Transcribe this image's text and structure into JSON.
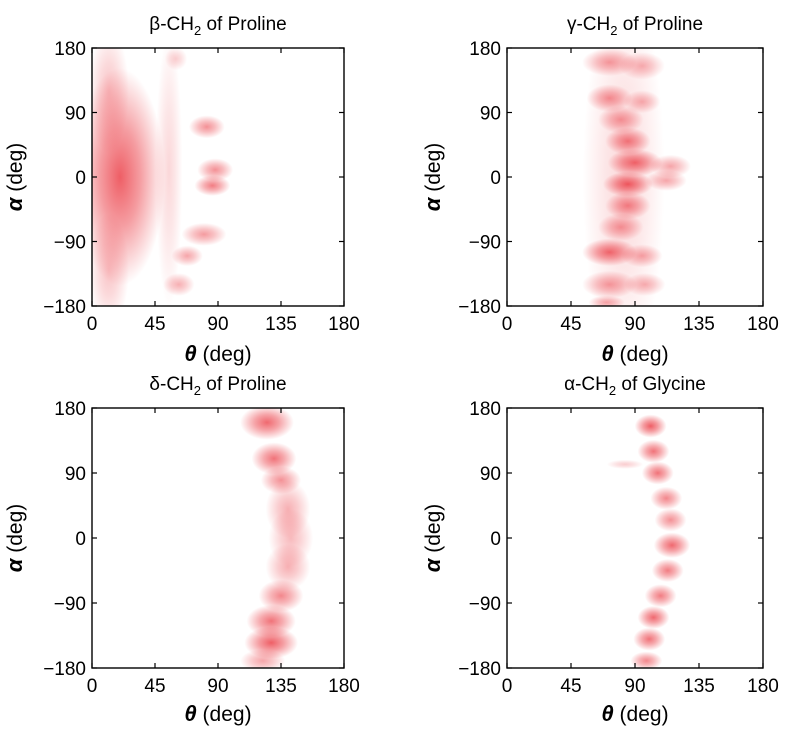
{
  "figure": {
    "density_color": "#e8202a",
    "background": "#ffffff"
  },
  "chart_data": [
    {
      "type": "heatmap",
      "title": {
        "greek": "β",
        "main": "-CH",
        "sub": "2",
        "rest": " of Proline"
      },
      "xlabel": {
        "symbol": "θ",
        "unit": " (deg)"
      },
      "ylabel": {
        "symbol": "α",
        "unit": " (deg)"
      },
      "xlim": [
        0,
        180
      ],
      "ylim": [
        -180,
        180
      ],
      "xticks": [
        "0",
        "45",
        "90",
        "135",
        "180"
      ],
      "yticks": [
        "−180",
        "−90",
        "0",
        "90",
        "180"
      ],
      "xtick_values": [
        0,
        45,
        90,
        135,
        180
      ],
      "ytick_values": [
        -180,
        -90,
        0,
        90,
        180
      ],
      "density_regions": [
        {
          "theta": 20,
          "alpha": 0,
          "d_theta": 20,
          "d_alpha": 95,
          "intensity": 0.8
        },
        {
          "theta": 12,
          "alpha": 120,
          "d_theta": 9,
          "d_alpha": 55,
          "intensity": 0.3
        },
        {
          "theta": 12,
          "alpha": -130,
          "d_theta": 9,
          "d_alpha": 50,
          "intensity": 0.3
        },
        {
          "theta": 55,
          "alpha": 10,
          "d_theta": 6,
          "d_alpha": 120,
          "intensity": 0.2
        },
        {
          "theta": 82,
          "alpha": 70,
          "d_theta": 8,
          "d_alpha": 10,
          "intensity": 0.55
        },
        {
          "theta": 88,
          "alpha": 10,
          "d_theta": 8,
          "d_alpha": 10,
          "intensity": 0.55
        },
        {
          "theta": 86,
          "alpha": -12,
          "d_theta": 8,
          "d_alpha": 9,
          "intensity": 0.65
        },
        {
          "theta": 80,
          "alpha": -80,
          "d_theta": 10,
          "d_alpha": 10,
          "intensity": 0.5
        },
        {
          "theta": 68,
          "alpha": -110,
          "d_theta": 7,
          "d_alpha": 9,
          "intensity": 0.45
        },
        {
          "theta": 62,
          "alpha": -150,
          "d_theta": 7,
          "d_alpha": 10,
          "intensity": 0.4
        },
        {
          "theta": 60,
          "alpha": 165,
          "d_theta": 5,
          "d_alpha": 10,
          "intensity": 0.25
        }
      ]
    },
    {
      "type": "heatmap",
      "title": {
        "greek": "γ",
        "main": "-CH",
        "sub": "2",
        "rest": " of Proline"
      },
      "xlabel": {
        "symbol": "θ",
        "unit": " (deg)"
      },
      "ylabel": {
        "symbol": "α",
        "unit": " (deg)"
      },
      "xlim": [
        0,
        180
      ],
      "ylim": [
        -180,
        180
      ],
      "xticks": [
        "0",
        "45",
        "90",
        "135",
        "180"
      ],
      "yticks": [
        "−180",
        "−90",
        "0",
        "90",
        "180"
      ],
      "xtick_values": [
        0,
        45,
        90,
        135,
        180
      ],
      "ytick_values": [
        -180,
        -90,
        0,
        90,
        180
      ],
      "density_regions": [
        {
          "theta": 72,
          "alpha": 160,
          "d_theta": 12,
          "d_alpha": 12,
          "intensity": 0.5
        },
        {
          "theta": 95,
          "alpha": 155,
          "d_theta": 10,
          "d_alpha": 12,
          "intensity": 0.4
        },
        {
          "theta": 72,
          "alpha": 110,
          "d_theta": 10,
          "d_alpha": 12,
          "intensity": 0.55
        },
        {
          "theta": 95,
          "alpha": 105,
          "d_theta": 8,
          "d_alpha": 10,
          "intensity": 0.4
        },
        {
          "theta": 80,
          "alpha": 80,
          "d_theta": 10,
          "d_alpha": 12,
          "intensity": 0.5
        },
        {
          "theta": 85,
          "alpha": 50,
          "d_theta": 10,
          "d_alpha": 12,
          "intensity": 0.65
        },
        {
          "theta": 90,
          "alpha": 20,
          "d_theta": 12,
          "d_alpha": 12,
          "intensity": 0.75
        },
        {
          "theta": 115,
          "alpha": 15,
          "d_theta": 9,
          "d_alpha": 10,
          "intensity": 0.45
        },
        {
          "theta": 85,
          "alpha": -10,
          "d_theta": 11,
          "d_alpha": 11,
          "intensity": 0.8
        },
        {
          "theta": 112,
          "alpha": -5,
          "d_theta": 9,
          "d_alpha": 9,
          "intensity": 0.45
        },
        {
          "theta": 85,
          "alpha": -40,
          "d_theta": 10,
          "d_alpha": 12,
          "intensity": 0.6
        },
        {
          "theta": 80,
          "alpha": -70,
          "d_theta": 10,
          "d_alpha": 12,
          "intensity": 0.5
        },
        {
          "theta": 72,
          "alpha": -105,
          "d_theta": 12,
          "d_alpha": 12,
          "intensity": 0.75
        },
        {
          "theta": 95,
          "alpha": -110,
          "d_theta": 9,
          "d_alpha": 10,
          "intensity": 0.45
        },
        {
          "theta": 72,
          "alpha": -150,
          "d_theta": 12,
          "d_alpha": 12,
          "intensity": 0.5
        },
        {
          "theta": 97,
          "alpha": -150,
          "d_theta": 9,
          "d_alpha": 10,
          "intensity": 0.4
        },
        {
          "theta": 70,
          "alpha": -175,
          "d_theta": 8,
          "d_alpha": 6,
          "intensity": 0.45
        },
        {
          "theta": 82,
          "alpha": 0,
          "d_theta": 18,
          "d_alpha": 170,
          "intensity": 0.2
        }
      ]
    },
    {
      "type": "heatmap",
      "title": {
        "greek": "δ",
        "main": "-CH",
        "sub": "2",
        "rest": " of Proline"
      },
      "xlabel": {
        "symbol": "θ",
        "unit": " (deg)"
      },
      "ylabel": {
        "symbol": "α",
        "unit": " (deg)"
      },
      "xlim": [
        0,
        180
      ],
      "ylim": [
        -180,
        180
      ],
      "xticks": [
        "0",
        "45",
        "90",
        "135",
        "180"
      ],
      "yticks": [
        "−180",
        "−90",
        "0",
        "90",
        "180"
      ],
      "xtick_values": [
        0,
        45,
        90,
        135,
        180
      ],
      "ytick_values": [
        -180,
        -90,
        0,
        90,
        180
      ],
      "density_regions": [
        {
          "theta": 125,
          "alpha": 160,
          "d_theta": 12,
          "d_alpha": 15,
          "intensity": 0.75
        },
        {
          "theta": 130,
          "alpha": 110,
          "d_theta": 10,
          "d_alpha": 14,
          "intensity": 0.7
        },
        {
          "theta": 135,
          "alpha": 80,
          "d_theta": 9,
          "d_alpha": 12,
          "intensity": 0.55
        },
        {
          "theta": 140,
          "alpha": 40,
          "d_theta": 10,
          "d_alpha": 25,
          "intensity": 0.4
        },
        {
          "theta": 142,
          "alpha": 0,
          "d_theta": 10,
          "d_alpha": 25,
          "intensity": 0.35
        },
        {
          "theta": 140,
          "alpha": -40,
          "d_theta": 10,
          "d_alpha": 20,
          "intensity": 0.4
        },
        {
          "theta": 135,
          "alpha": -80,
          "d_theta": 10,
          "d_alpha": 14,
          "intensity": 0.6
        },
        {
          "theta": 128,
          "alpha": -115,
          "d_theta": 11,
          "d_alpha": 14,
          "intensity": 0.7
        },
        {
          "theta": 128,
          "alpha": -145,
          "d_theta": 12,
          "d_alpha": 14,
          "intensity": 0.8
        },
        {
          "theta": 122,
          "alpha": -170,
          "d_theta": 10,
          "d_alpha": 10,
          "intensity": 0.45
        }
      ]
    },
    {
      "type": "heatmap",
      "title": {
        "greek": "α",
        "main": "-CH",
        "sub": "2",
        "rest": " of Glycine"
      },
      "xlabel": {
        "symbol": "θ",
        "unit": " (deg)"
      },
      "ylabel": {
        "symbol": "α",
        "unit": " (deg)"
      },
      "xlim": [
        0,
        180
      ],
      "ylim": [
        -180,
        180
      ],
      "xticks": [
        "0",
        "45",
        "90",
        "135",
        "180"
      ],
      "yticks": [
        "−180",
        "−90",
        "0",
        "90",
        "180"
      ],
      "xtick_values": [
        0,
        45,
        90,
        135,
        180
      ],
      "ytick_values": [
        -180,
        -90,
        0,
        90,
        180
      ],
      "density_regions": [
        {
          "theta": 101,
          "alpha": 155,
          "d_theta": 7,
          "d_alpha": 10,
          "intensity": 0.8
        },
        {
          "theta": 103,
          "alpha": 120,
          "d_theta": 7,
          "d_alpha": 10,
          "intensity": 0.7
        },
        {
          "theta": 106,
          "alpha": 90,
          "d_theta": 7,
          "d_alpha": 10,
          "intensity": 0.7
        },
        {
          "theta": 83,
          "alpha": 102,
          "d_theta": 8,
          "d_alpha": 4,
          "intensity": 0.25
        },
        {
          "theta": 112,
          "alpha": 55,
          "d_theta": 7,
          "d_alpha": 10,
          "intensity": 0.6
        },
        {
          "theta": 115,
          "alpha": 25,
          "d_theta": 7,
          "d_alpha": 10,
          "intensity": 0.55
        },
        {
          "theta": 116,
          "alpha": -10,
          "d_theta": 8,
          "d_alpha": 11,
          "intensity": 0.75
        },
        {
          "theta": 113,
          "alpha": -45,
          "d_theta": 7,
          "d_alpha": 10,
          "intensity": 0.65
        },
        {
          "theta": 108,
          "alpha": -80,
          "d_theta": 7,
          "d_alpha": 10,
          "intensity": 0.65
        },
        {
          "theta": 103,
          "alpha": -110,
          "d_theta": 7,
          "d_alpha": 10,
          "intensity": 0.75
        },
        {
          "theta": 100,
          "alpha": -140,
          "d_theta": 7,
          "d_alpha": 10,
          "intensity": 0.7
        },
        {
          "theta": 98,
          "alpha": -170,
          "d_theta": 7,
          "d_alpha": 8,
          "intensity": 0.6
        }
      ]
    }
  ]
}
